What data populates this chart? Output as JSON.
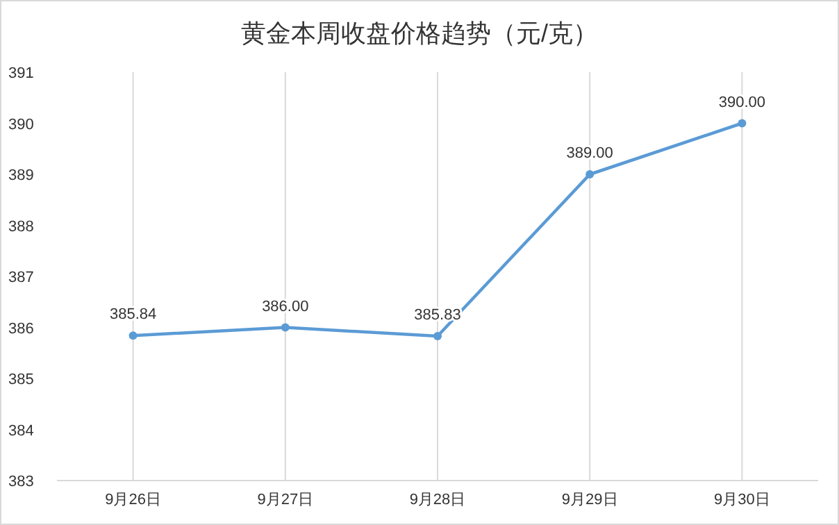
{
  "chart_data": {
    "type": "line",
    "title": "黄金本周收盘价格趋势（元/克）",
    "categories": [
      "9月26日",
      "9月27日",
      "9月28日",
      "9月29日",
      "9月30日"
    ],
    "series": [
      {
        "color": "#5b9bd5",
        "values": [
          385.84,
          386.0,
          385.83,
          389.0,
          390.0
        ],
        "value_labels": [
          "385.84",
          "386.00",
          "385.83",
          "389.00",
          "390.00"
        ]
      }
    ],
    "ylim": [
      383,
      391
    ],
    "yticks": [
      383,
      384,
      385,
      386,
      387,
      388,
      389,
      390,
      391
    ],
    "grid": "x",
    "marker": "circle",
    "line_style": "solid"
  }
}
